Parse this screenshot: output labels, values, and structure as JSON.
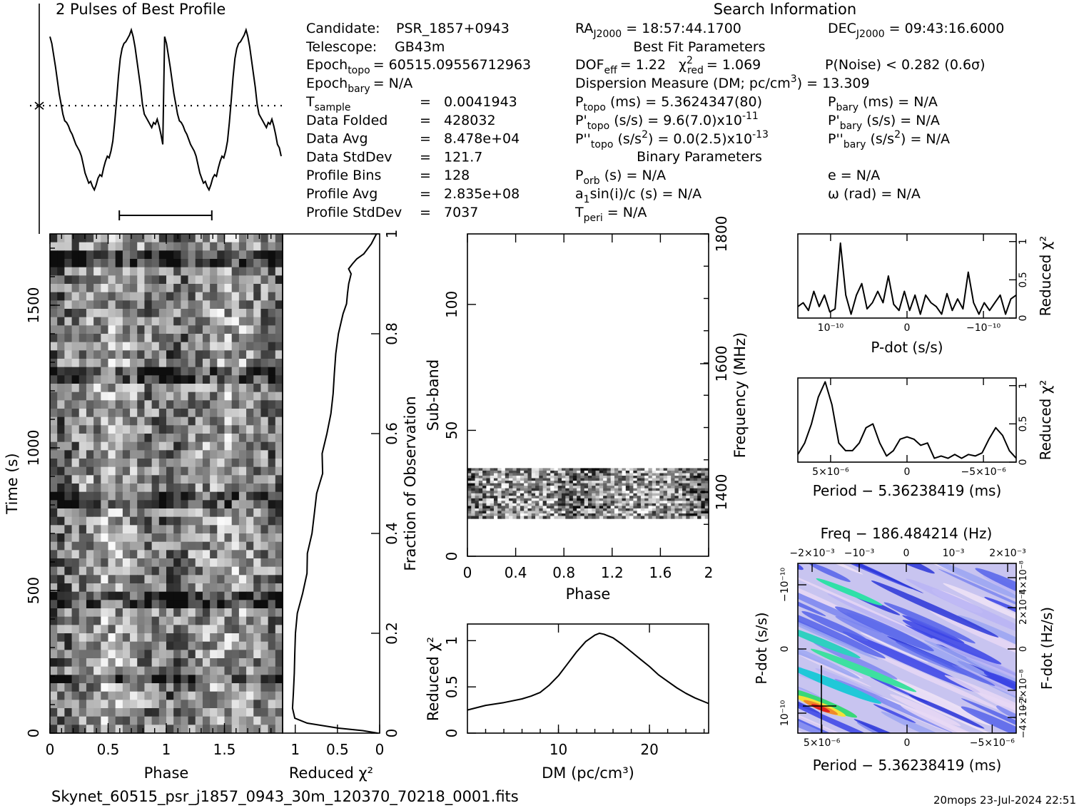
{
  "profile_title": "2 Pulses of Best Profile",
  "search_title": "Search Information",
  "info": {
    "candidate_label": "Candidate:",
    "candidate": "PSR_1857+0943",
    "telescope_label": "Telescope:",
    "telescope": "GB43m",
    "epoch_topo": "Epoch",
    "epoch_topo_sub": "topo",
    "epoch_topo_val": "= 60515.09556712963",
    "epoch_bary": "Epoch",
    "epoch_bary_sub": "bary",
    "epoch_bary_val": "= N/A",
    "rows": [
      {
        "label": "T",
        "sub": "sample",
        "eq": "=",
        "value": "0.0041943"
      },
      {
        "label": "Data Folded",
        "sub": "",
        "eq": "=",
        "value": "428032"
      },
      {
        "label": "Data Avg",
        "sub": "",
        "eq": "=",
        "value": "8.478e+04"
      },
      {
        "label": "Data StdDev",
        "sub": "",
        "eq": "=",
        "value": "121.7"
      },
      {
        "label": "Profile Bins",
        "sub": "",
        "eq": "=",
        "value": "128"
      },
      {
        "label": "Profile Avg",
        "sub": "",
        "eq": "=",
        "value": "2.835e+08"
      },
      {
        "label": "Profile StdDev",
        "sub": "",
        "eq": "=",
        "value": "7037"
      }
    ]
  },
  "search": {
    "ra": "RA",
    "ra_sub": "J2000",
    "ra_val": "= 18:57:44.1700",
    "dec": "DEC",
    "dec_sub": "J2000",
    "dec_val": "= 09:43:16.6000",
    "best_fit_title": "Best Fit Parameters",
    "dof": "DOF",
    "dof_sub": "eff",
    "dof_val": "= 1.22",
    "chi": "χ",
    "chi_sup": "2",
    "chi_sub": "red",
    "chi_val": "= 1.069",
    "pnoise": "P(Noise) < 0.282   (0.6σ)",
    "dm_line": "Dispersion Measure (DM; pc/cm",
    "dm_sup": "3",
    "dm_val": ") = 13.309",
    "ptopo": "P",
    "ptopo_sub": "topo",
    "ptopo_val": " (ms) =  5.3624347(80)",
    "pdtopo": "P'",
    "pdtopo_sub": "topo",
    "pdtopo_val": " (s/s) =  9.6(7.0)x10",
    "pdtopo_exp": "-11",
    "pddtopo": "P''",
    "pddtopo_sub": "topo",
    "pddtopo_val": " (s/s",
    "pddtopo_sup": "2",
    "pddtopo_val2": ") = 0.0(2.5)x10",
    "pddtopo_exp": "-13",
    "pbary": "P",
    "pbary_sub": "bary",
    "pbary_val": " (ms) = N/A",
    "pdbary": "P'",
    "pdbary_sub": "bary",
    "pdbary_val": " (s/s) = N/A",
    "pddbary": "P''",
    "pddbary_sub": "bary",
    "pddbary_val": " (s/s",
    "pddbary_sup": "2",
    "pddbary_val2": ") = N/A",
    "binary_title": "Binary Parameters",
    "porb": "P",
    "porb_sub": "orb",
    "porb_val": " (s) = N/A",
    "a1": "a",
    "a1_sub": "1",
    "a1_val": "sin(i)/c (s) = N/A",
    "tperi": "T",
    "tperi_sub": "peri",
    "tperi_val": " = N/A",
    "e": "e = N/A",
    "omega": "ω (rad) = N/A"
  },
  "filename": "Skynet_60515_psr_j1857_0943_30m_120370_70218_0001.fits",
  "footer_right": "20mops 23-Jul-2024 22:51",
  "chart_data": [
    {
      "id": "profile",
      "type": "line",
      "title": "2 Pulses of Best Profile",
      "x_range": [
        0,
        2
      ],
      "y": [
        0.96,
        0.92,
        0.85,
        0.78,
        0.7,
        0.62,
        0.56,
        0.5,
        0.46,
        0.45,
        0.43,
        0.4,
        0.38,
        0.35,
        0.32,
        0.3,
        0.28,
        0.25,
        0.2,
        0.15,
        0.12,
        0.09,
        0.1,
        0.07,
        0.05,
        0.08,
        0.12,
        0.14,
        0.13,
        0.18,
        0.22,
        0.25,
        0.24,
        0.28,
        0.34,
        0.45,
        0.58,
        0.72,
        0.83,
        0.89,
        0.92,
        0.93,
        0.95,
        0.97,
        1.0,
        0.96,
        0.9,
        0.82,
        0.74,
        0.66,
        0.56,
        0.5,
        0.48,
        0.46,
        0.44,
        0.42,
        0.45,
        0.44,
        0.47,
        0.43,
        0.38,
        0.32,
        0.96,
        0.92,
        0.85,
        0.78,
        0.7,
        0.62,
        0.56,
        0.5,
        0.46,
        0.45,
        0.43,
        0.4,
        0.38,
        0.35,
        0.32,
        0.3,
        0.28,
        0.25,
        0.2,
        0.15,
        0.12,
        0.09,
        0.1,
        0.07,
        0.05,
        0.08,
        0.12,
        0.14,
        0.13,
        0.18,
        0.22,
        0.25,
        0.24,
        0.28,
        0.34,
        0.45,
        0.58,
        0.72,
        0.83,
        0.89,
        0.92,
        0.93,
        0.95,
        0.97,
        1.0,
        0.96,
        0.9,
        0.82,
        0.74,
        0.66,
        0.56,
        0.5,
        0.48,
        0.46,
        0.44,
        0.42,
        0.45,
        0.44,
        0.47,
        0.43,
        0.38,
        0.32,
        0.3,
        0.25
      ],
      "dotted_level": 0.55,
      "errorbar_phase": [
        0.6,
        1.4
      ]
    },
    {
      "id": "time_phase",
      "type": "heatmap",
      "xlabel": "Phase",
      "ylabel": "Time (s)",
      "x_range": [
        0,
        2
      ],
      "y_range": [
        0,
        1750
      ],
      "x_ticks": [
        "0",
        "0.5",
        "1",
        "1.5"
      ],
      "y_ticks": [
        "0",
        "500",
        "1000",
        "1500"
      ]
    },
    {
      "id": "time_chi2",
      "type": "line",
      "xlabel": "Reduced χ²",
      "ylabel": "Fraction of Observation",
      "x_range": [
        1.15,
        0
      ],
      "y_range": [
        0,
        1
      ],
      "x_ticks": [
        "1",
        "0.5",
        "0"
      ],
      "y_ticks": [
        "0",
        "0.2",
        "0.4",
        "0.6",
        "0.8",
        "1"
      ],
      "x": [
        0.01,
        0.2,
        0.5,
        0.85,
        0.98,
        1.02,
        1.05,
        1.04,
        1.02,
        1.0,
        0.96,
        0.92,
        0.88,
        0.85,
        0.82,
        0.78,
        0.74,
        0.7,
        0.66,
        0.62,
        0.58,
        0.55,
        0.52,
        0.5,
        0.47,
        0.45,
        0.42,
        0.4,
        0.38,
        0.36,
        0.34,
        0.3,
        0.25,
        0.18,
        0.1,
        0.02
      ],
      "y": [
        0.0,
        0.005,
        0.01,
        0.02,
        0.03,
        0.05,
        0.08,
        0.12,
        0.16,
        0.2,
        0.24,
        0.28,
        0.32,
        0.36,
        0.4,
        0.44,
        0.48,
        0.52,
        0.56,
        0.6,
        0.64,
        0.68,
        0.72,
        0.76,
        0.8,
        0.84,
        0.86,
        0.88,
        0.9,
        0.92,
        0.93,
        0.94,
        0.95,
        0.96,
        0.98,
        1.0
      ]
    },
    {
      "id": "subband_phase",
      "type": "heatmap",
      "xlabel": "Phase",
      "ylabel": "Sub-band",
      "y2label": "Frequency (MHz)",
      "x_range": [
        0,
        2
      ],
      "y_range": [
        0,
        128
      ],
      "x_ticks": [
        "0",
        "0.4",
        "0.8",
        "1.2",
        "1.6",
        "2"
      ],
      "y_ticks": [
        "0",
        "50",
        "100"
      ],
      "y2_ticks": [
        "1400",
        "1600",
        "1800"
      ],
      "data_band": [
        15,
        35
      ]
    },
    {
      "id": "dm_chi2",
      "type": "line",
      "xlabel": "DM (pc/cm³)",
      "ylabel": "Reduced χ²",
      "x_range": [
        0,
        26.5
      ],
      "y_range": [
        0,
        1.18
      ],
      "x_ticks": [
        "10",
        "20"
      ],
      "y_ticks": [
        "0",
        "0.5",
        "1"
      ],
      "x": [
        0,
        2,
        4,
        6,
        7,
        8,
        9,
        10,
        11,
        12,
        13,
        14,
        14.5,
        15,
        16,
        17,
        18,
        19,
        20,
        21,
        22,
        23,
        24,
        25,
        26.5
      ],
      "y": [
        0.25,
        0.3,
        0.33,
        0.37,
        0.4,
        0.44,
        0.52,
        0.62,
        0.75,
        0.88,
        0.99,
        1.06,
        1.08,
        1.07,
        1.03,
        0.96,
        0.88,
        0.8,
        0.72,
        0.63,
        0.56,
        0.49,
        0.43,
        0.38,
        0.32
      ]
    },
    {
      "id": "pdot_chi2",
      "type": "line",
      "xlabel": "P-dot (s/s)",
      "ylabel": "Reduced χ²",
      "x_ticks": [
        "10⁻¹⁰",
        "0",
        "−10⁻¹⁰"
      ],
      "y_ticks": [
        "0",
        "0.5",
        "1"
      ],
      "y_range": [
        0,
        1.1
      ],
      "values": [
        0.15,
        0.2,
        0.1,
        0.35,
        0.15,
        0.3,
        0.08,
        0.12,
        0.98,
        0.3,
        0.05,
        0.3,
        0.45,
        0.12,
        0.2,
        0.35,
        0.2,
        0.55,
        0.18,
        0.1,
        0.35,
        0.1,
        0.3,
        0.05,
        0.3,
        0.2,
        0.15,
        0.05,
        0.32,
        0.1,
        0.25,
        0.12,
        0.6,
        0.2,
        0.05,
        0.2,
        0.1,
        0.2,
        0.3,
        0.05,
        0.25,
        0.3
      ]
    },
    {
      "id": "period_chi2",
      "type": "line",
      "xlabel": "Period − 5.36238419 (ms)",
      "ylabel": "Reduced χ²",
      "x_ticks": [
        "5×10⁻⁶",
        "0",
        "−5×10⁻⁶"
      ],
      "y_ticks": [
        "0",
        "0.5",
        "1"
      ],
      "y_range": [
        0,
        1.1
      ],
      "values": [
        0.1,
        0.25,
        0.5,
        0.85,
        1.05,
        0.75,
        0.25,
        0.15,
        0.15,
        0.25,
        0.45,
        0.5,
        0.25,
        0.08,
        0.15,
        0.3,
        0.33,
        0.3,
        0.22,
        0.25,
        0.05,
        0.08,
        0.05,
        0.1,
        0.05,
        0.1,
        0.08,
        0.12,
        0.3,
        0.45,
        0.35,
        0.15,
        0.05
      ]
    },
    {
      "id": "ppdot_map",
      "type": "heatmap",
      "title": "Freq − 186.484214 (Hz)",
      "xlabel": "Period − 5.36238419 (ms)",
      "ylabel": "P-dot (s/s)",
      "y2label": "F-dot (Hz/s)",
      "x_ticks": [
        "5×10⁻⁶",
        "0",
        "−5×10⁻⁶"
      ],
      "x2_ticks": [
        "−2×10⁻³",
        "−10⁻³",
        "0",
        "10⁻³",
        "2×10⁻³"
      ],
      "y_ticks": [
        "10⁻¹⁰",
        "0",
        "−10⁻¹⁰"
      ],
      "y2_ticks": [
        "−4×10⁻⁸",
        "−2×10⁻⁸",
        "0",
        "2×10⁻⁸",
        "4×10⁻⁸"
      ]
    }
  ]
}
